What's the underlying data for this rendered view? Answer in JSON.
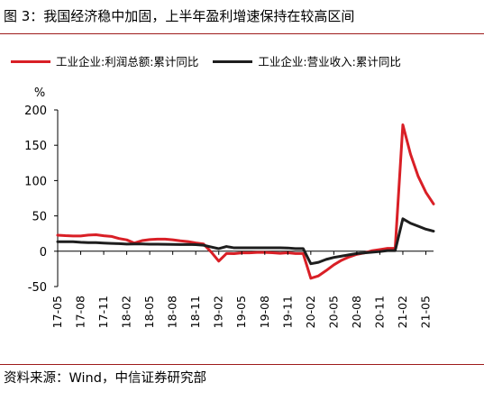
{
  "figure": {
    "title": "图 3：我国经济稳中加固，上半年盈利增速保持在较高区间",
    "source": "资料来源：Wind，中信证券研究部",
    "rule_color": "#9e1b1b"
  },
  "chart_data": {
    "type": "line",
    "ylabel": "%",
    "ylim": [
      -50,
      200
    ],
    "yticks": [
      -50,
      0,
      50,
      100,
      150,
      200
    ],
    "grid": false,
    "legend_position": "top",
    "x": [
      "17-05",
      "17-06",
      "17-07",
      "17-08",
      "17-09",
      "17-10",
      "17-11",
      "17-12",
      "18-01",
      "18-02",
      "18-03",
      "18-04",
      "18-05",
      "18-06",
      "18-07",
      "18-08",
      "18-09",
      "18-10",
      "18-11",
      "18-12",
      "19-01",
      "19-02",
      "19-03",
      "19-04",
      "19-05",
      "19-06",
      "19-07",
      "19-08",
      "19-09",
      "19-10",
      "19-11",
      "19-12",
      "20-01",
      "20-02",
      "20-03",
      "20-04",
      "20-05",
      "20-06",
      "20-07",
      "20-08",
      "20-09",
      "20-10",
      "20-11",
      "20-12",
      "21-01",
      "21-02",
      "21-03",
      "21-04",
      "21-05",
      "21-06"
    ],
    "xtick_labels": [
      "17-05",
      "17-08",
      "17-11",
      "18-02",
      "18-05",
      "18-08",
      "18-11",
      "19-02",
      "19-05",
      "19-08",
      "19-11",
      "20-02",
      "20-05",
      "20-08",
      "20-11",
      "21-02",
      "21-05"
    ],
    "series": [
      {
        "name": "工业企业:利润总额:累计同比",
        "color": "#d91f26",
        "values": [
          22.7,
          22.0,
          21.6,
          21.6,
          22.8,
          23.3,
          21.9,
          21.0,
          18.0,
          16.1,
          11.6,
          15.0,
          16.5,
          17.2,
          17.1,
          16.2,
          14.7,
          13.6,
          11.8,
          10.3,
          -1.0,
          -14.0,
          -3.3,
          -3.4,
          -2.3,
          -2.4,
          -1.7,
          -1.7,
          -2.1,
          -2.9,
          -2.1,
          -3.3,
          -3.3,
          -38.3,
          -34.9,
          -27.4,
          -19.3,
          -12.8,
          -8.1,
          -4.4,
          -2.4,
          0.7,
          2.4,
          4.1,
          4.1,
          178.9,
          137.3,
          106.0,
          83.4,
          66.9
        ]
      },
      {
        "name": "工业企业:营业收入:累计同比",
        "color": "#1e1e1e",
        "values": [
          13.5,
          13.5,
          13.4,
          12.6,
          12.2,
          12.2,
          11.6,
          11.1,
          10.8,
          10.1,
          10.2,
          10.3,
          9.9,
          9.9,
          9.8,
          9.7,
          9.5,
          9.6,
          9.3,
          8.5,
          6.0,
          3.6,
          6.7,
          4.8,
          4.8,
          4.8,
          4.8,
          4.8,
          4.8,
          4.8,
          4.6,
          3.8,
          3.8,
          -17.7,
          -15.7,
          -11.6,
          -8.8,
          -6.9,
          -5.0,
          -3.3,
          -2.3,
          -1.4,
          -0.5,
          0.8,
          0.8,
          45.9,
          39.6,
          35.5,
          31.2,
          28.4
        ]
      }
    ]
  }
}
